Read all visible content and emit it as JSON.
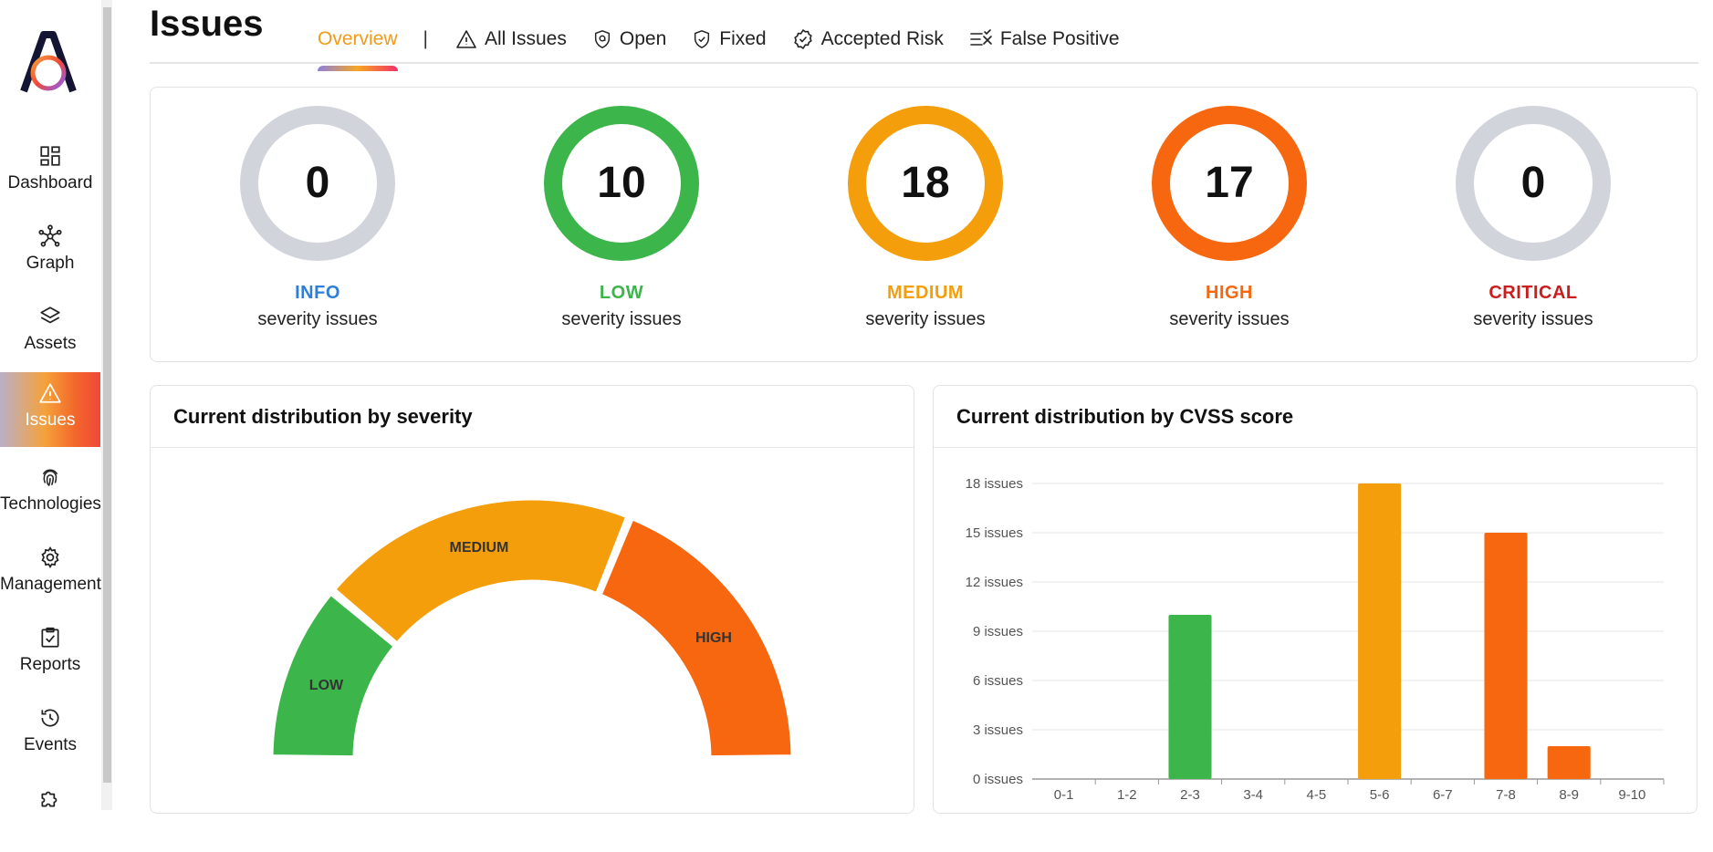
{
  "sidebar": {
    "items": [
      {
        "label": "Dashboard",
        "icon": "dashboard-icon"
      },
      {
        "label": "Graph",
        "icon": "graph-icon"
      },
      {
        "label": "Assets",
        "icon": "layers-icon"
      },
      {
        "label": "Issues",
        "icon": "warning-icon",
        "active": true
      },
      {
        "label": "Technologies",
        "icon": "fingerprint-icon"
      },
      {
        "label": "Management",
        "icon": "gear-icon"
      },
      {
        "label": "Reports",
        "icon": "clipboard-check-icon"
      },
      {
        "label": "Events",
        "icon": "history-icon"
      },
      {
        "label": "",
        "icon": "puzzle-icon"
      }
    ]
  },
  "header": {
    "title": "Issues",
    "tabs": [
      {
        "label": "Overview",
        "active": true
      },
      {
        "label": "All Issues",
        "icon": "warning-icon"
      },
      {
        "label": "Open",
        "icon": "shield-open-icon"
      },
      {
        "label": "Fixed",
        "icon": "shield-check-icon"
      },
      {
        "label": "Accepted Risk",
        "icon": "badge-check-icon"
      },
      {
        "label": "False Positive",
        "icon": "list-x-icon"
      }
    ],
    "separator": "|"
  },
  "summary": [
    {
      "count": "0",
      "name": "INFO",
      "sub": "severity issues",
      "ring_color": "#d1d5db",
      "name_color": "#2f7fd6"
    },
    {
      "count": "10",
      "name": "LOW",
      "sub": "severity issues",
      "ring_color": "#3cb54a",
      "name_color": "#3cb54a"
    },
    {
      "count": "18",
      "name": "MEDIUM",
      "sub": "severity issues",
      "ring_color": "#f59e0b",
      "name_color": "#f59e0b"
    },
    {
      "count": "17",
      "name": "HIGH",
      "sub": "severity issues",
      "ring_color": "#f6670f",
      "name_color": "#f6670f"
    },
    {
      "count": "0",
      "name": "CRITICAL",
      "sub": "severity issues",
      "ring_color": "#d1d5db",
      "name_color": "#c81e1e"
    }
  ],
  "charts": {
    "severity_title": "Current distribution by severity",
    "cvss_title": "Current distribution by CVSS score"
  },
  "chart_data": [
    {
      "type": "pie",
      "variant": "half-donut",
      "categories": [
        "LOW",
        "MEDIUM",
        "HIGH"
      ],
      "values": [
        10,
        18,
        17
      ],
      "colors": [
        "#3cb54a",
        "#f59e0b",
        "#f6670f"
      ]
    },
    {
      "type": "bar",
      "categories": [
        "0-1",
        "1-2",
        "2-3",
        "3-4",
        "4-5",
        "5-6",
        "6-7",
        "7-8",
        "8-9",
        "9-10"
      ],
      "values": [
        0,
        0,
        10,
        0,
        0,
        18,
        0,
        15,
        2,
        0
      ],
      "colors": [
        "#3cb54a",
        "#3cb54a",
        "#3cb54a",
        "#f59e0b",
        "#f59e0b",
        "#f59e0b",
        "#f6670f",
        "#f6670f",
        "#f6670f",
        "#c81e1e"
      ],
      "yticks": [
        "0 issues",
        "3 issues",
        "6 issues",
        "9 issues",
        "12 issues",
        "15 issues",
        "18 issues"
      ],
      "ylim": [
        0,
        18
      ],
      "grid": true
    }
  ]
}
